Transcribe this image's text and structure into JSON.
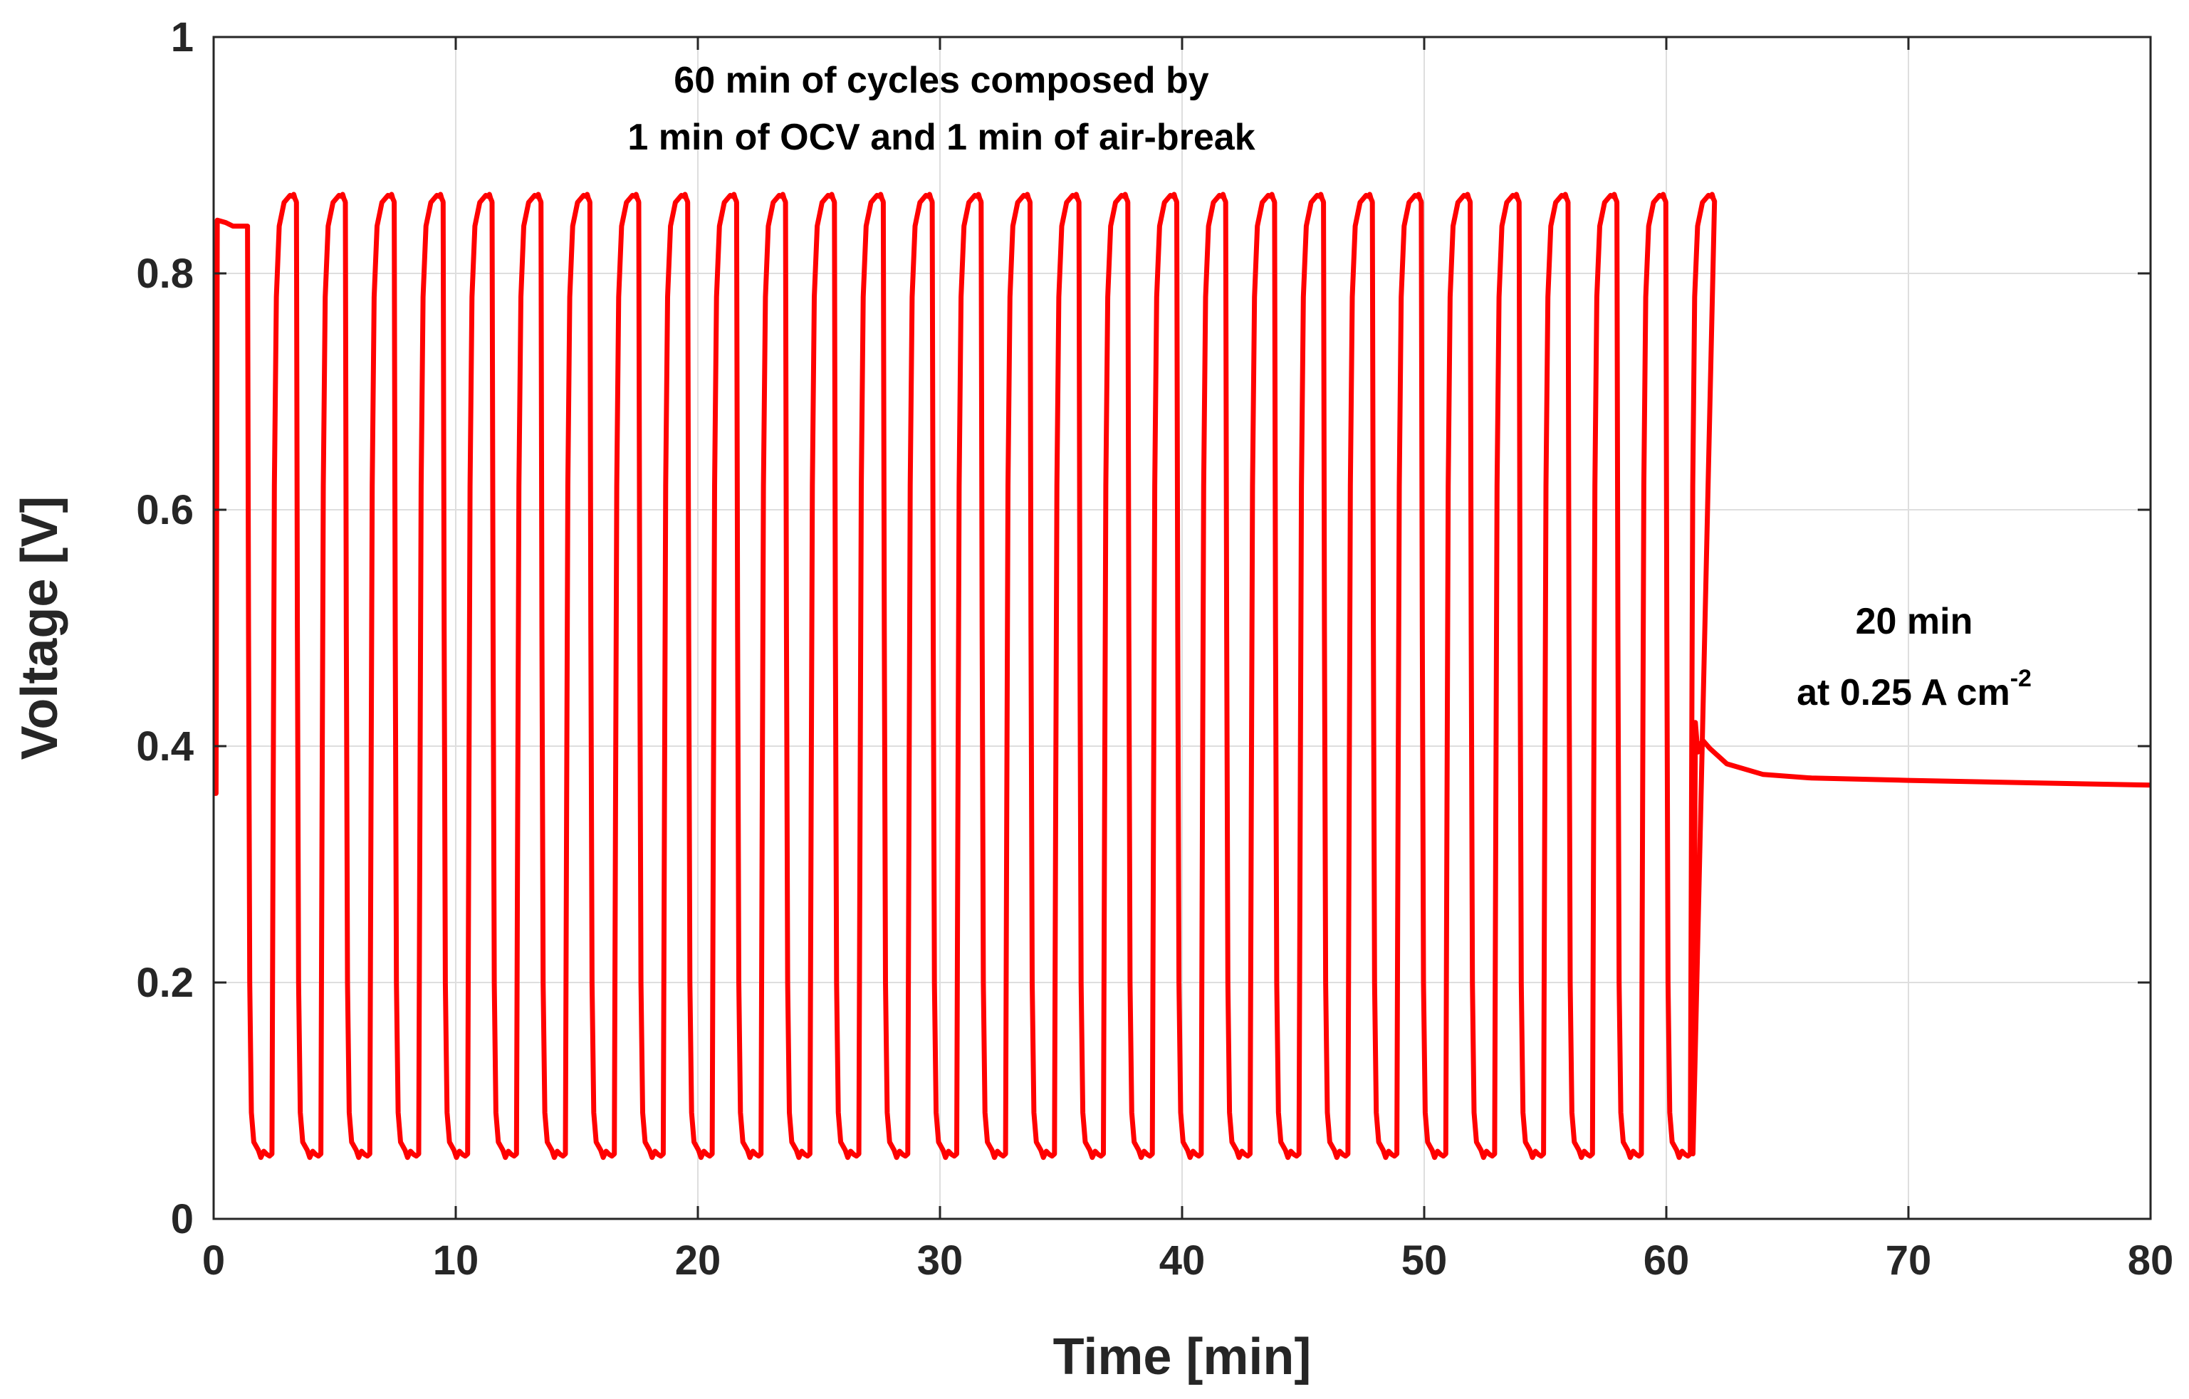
{
  "chart_data": {
    "type": "line",
    "title": "",
    "xlabel": "Time [min]",
    "ylabel": "Voltage [V]",
    "xlim": [
      0,
      80
    ],
    "ylim": [
      0,
      1
    ],
    "xticks": [
      0,
      10,
      20,
      30,
      40,
      50,
      60,
      70,
      80
    ],
    "yticks": [
      0,
      0.2,
      0.4,
      0.6,
      0.8,
      1
    ],
    "xtick_labels": [
      "0",
      "10",
      "20",
      "30",
      "40",
      "50",
      "60",
      "70",
      "80"
    ],
    "ytick_labels": [
      "0",
      "0.2",
      "0.4",
      "0.6",
      "0.8",
      "1"
    ],
    "grid": true,
    "line_color": "#ff0000",
    "series": [
      {
        "name": "Voltage",
        "segments": [
          {
            "description": "initial OCV hold",
            "x": [
              0.0,
              0.1,
              0.15,
              0.5,
              0.8,
              1.4
            ],
            "y": [
              0.36,
              0.36,
              0.845,
              0.843,
              0.84,
              0.84
            ]
          },
          {
            "description": "cycling: 1 min OCV / 1 min air-break",
            "cycle_count": 30,
            "cycle_start_min": 1.4,
            "cycle_period_min": 2.02,
            "air_break_min_voltage": 0.055,
            "ocv_peak_voltage": 0.868
          },
          {
            "description": "20 min at 0.25 A cm-2",
            "x": [
              61.1,
              61.15,
              61.2,
              61.3,
              61.5,
              61.8,
              62.5,
              64,
              66,
              70,
              75,
              80
            ],
            "y": [
              0.055,
              0.21,
              0.42,
              0.395,
              0.405,
              0.398,
              0.385,
              0.376,
              0.373,
              0.371,
              0.369,
              0.367
            ]
          }
        ]
      }
    ],
    "annotations": [
      {
        "lines": [
          "60 min of cycles composed by",
          "1 min of OCV and 1 min of air-break"
        ]
      },
      {
        "lines": [
          "20 min",
          "at 0.25 A cm"
        ],
        "superscript": "-2"
      }
    ]
  }
}
